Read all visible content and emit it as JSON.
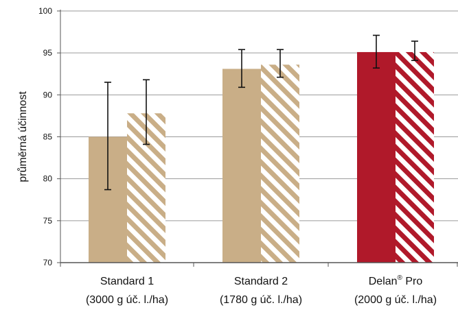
{
  "chart_data": {
    "type": "bar",
    "ylabel": "průměrná účinnost",
    "ylim": [
      70,
      100
    ],
    "yticks": [
      70,
      75,
      80,
      85,
      90,
      95,
      100
    ],
    "grid": true,
    "legend": "none",
    "categories": [
      {
        "line1": "Standard 1",
        "line1_suffix": "",
        "line2": "(3000 g úč. l./ha)"
      },
      {
        "line1": "Standard 2",
        "line1_suffix": "",
        "line2": "(1780 g úč. l./ha)"
      },
      {
        "line1": "Delan",
        "sup": "®",
        "line1_suffix": " Pro",
        "line2": "(2000 g úč. l./ha)"
      }
    ],
    "series": [
      {
        "style": "solid",
        "values": [
          85.0,
          93.1,
          95.1
        ],
        "err_low": [
          78.7,
          90.9,
          93.2
        ],
        "err_high": [
          91.5,
          95.4,
          97.1
        ]
      },
      {
        "style": "striped",
        "values": [
          87.8,
          93.6,
          95.1
        ],
        "err_low": [
          84.1,
          92.1,
          94.1
        ],
        "err_high": [
          91.8,
          95.4,
          96.4
        ]
      }
    ],
    "colors": [
      "#c9ae87",
      "#c9ae87",
      "#b0192a"
    ]
  }
}
